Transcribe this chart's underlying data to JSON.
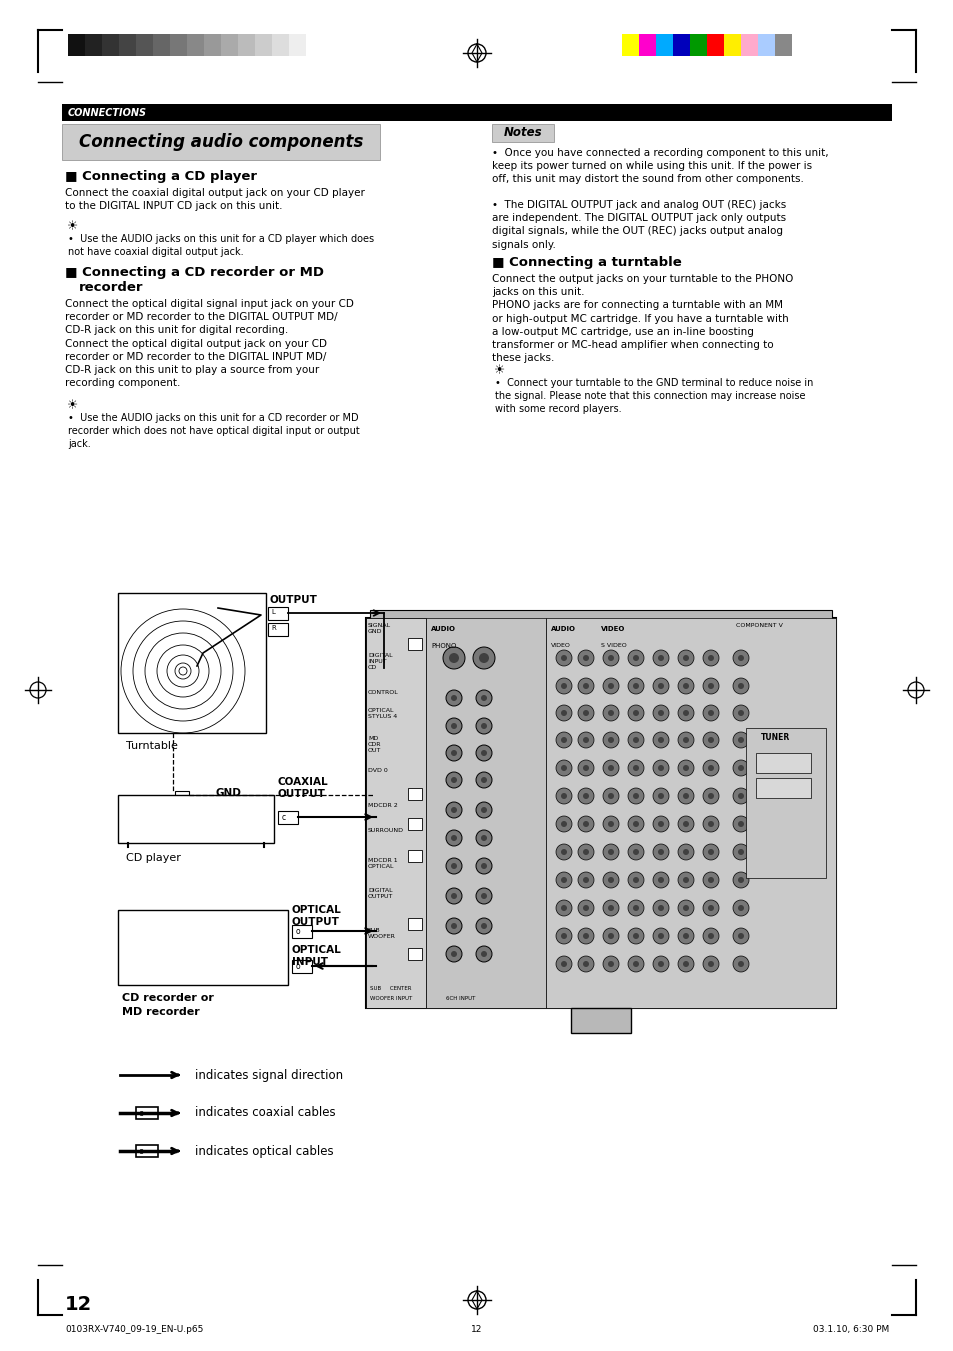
{
  "page_bg": "#ffffff",
  "header_bar_color": "#000000",
  "header_text": "CONNECTIONS",
  "header_text_color": "#ffffff",
  "title_box_color": "#cccccc",
  "title_text": "Connecting audio components",
  "notes_box_color": "#cccccc",
  "notes_title": "Notes",
  "section1_title": "Connecting a CD player",
  "section1_body": "Connect the coaxial digital output jack on your CD player\nto the DIGITAL INPUT CD jack on this unit.",
  "section1_tip": "Use the AUDIO jacks on this unit for a CD player which does\nnot have coaxial digital output jack.",
  "section2_body": "Connect the optical digital signal input jack on your CD\nrecorder or MD recorder to the DIGITAL OUTPUT MD/\nCD-R jack on this unit for digital recording.\nConnect the optical digital output jack on your CD\nrecorder or MD recorder to the DIGITAL INPUT MD/\nCD-R jack on this unit to play a source from your\nrecording component.",
  "section2_tip": "Use the AUDIO jacks on this unit for a CD recorder or MD\nrecorder which does not have optical digital input or output\njack.",
  "notes_body1": "Once you have connected a recording component to this unit,\nkeep its power turned on while using this unit. If the power is\noff, this unit may distort the sound from other components.",
  "notes_body2": "The DIGITAL OUTPUT jack and analog OUT (REC) jacks\nare independent. The DIGITAL OUTPUT jack only outputs\ndigital signals, while the OUT (REC) jacks output analog\nsignals only.",
  "section3_title": "Connecting a turntable",
  "section3_body": "Connect the output jacks on your turntable to the PHONO\njacks on this unit.\nPHONO jacks are for connecting a turntable with an MM\nor high-output MC cartridge. If you have a turntable with\na low-output MC cartridge, use an in-line boosting\ntransformer or MC-head amplifier when connecting to\nthese jacks.",
  "section3_tip": "Connect your turntable to the GND terminal to reduce noise in\nthe signal. Please note that this connection may increase noise\nwith some record players.",
  "legend1": "indicates signal direction",
  "legend2": "indicates coaxial cables",
  "legend3": "indicates optical cables",
  "page_number": "12",
  "footer_left": "0103RX-V740_09-19_EN-U.p65",
  "footer_center": "12",
  "footer_right": "03.1.10, 6:30 PM",
  "colors_left": [
    "#111111",
    "#222222",
    "#333333",
    "#444444",
    "#555555",
    "#666666",
    "#777777",
    "#888888",
    "#999999",
    "#aaaaaa",
    "#bbbbbb",
    "#cccccc",
    "#dddddd",
    "#eeeeee",
    "#ffffff"
  ],
  "colors_right": [
    "#ffff00",
    "#ff00cc",
    "#00aaff",
    "#0000bb",
    "#009900",
    "#ff0000",
    "#ffee00",
    "#ffaacc",
    "#aaccff",
    "#888888"
  ],
  "recv_color": "#b8b8b8",
  "recv_inner_color": "#c8c8c8"
}
